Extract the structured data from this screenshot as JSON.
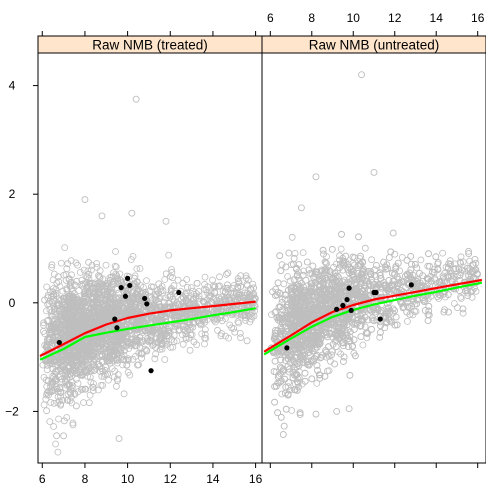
{
  "chart_data": {
    "type": "scatter",
    "panels": [
      {
        "title": "Raw NMB (treated)",
        "xlim": [
          5.8,
          16.3
        ],
        "highlight_points": [
          {
            "x": 6.8,
            "y": -0.73
          },
          {
            "x": 9.4,
            "y": -0.3
          },
          {
            "x": 9.5,
            "y": -0.46
          },
          {
            "x": 9.7,
            "y": 0.28
          },
          {
            "x": 9.9,
            "y": 0.12
          },
          {
            "x": 10.0,
            "y": 0.45
          },
          {
            "x": 10.1,
            "y": 0.32
          },
          {
            "x": 10.8,
            "y": 0.08
          },
          {
            "x": 10.9,
            "y": -0.02
          },
          {
            "x": 11.1,
            "y": -1.25
          },
          {
            "x": 12.4,
            "y": 0.19
          }
        ],
        "outliers": [
          {
            "x": 10.4,
            "y": 3.75
          },
          {
            "x": 8.0,
            "y": 1.9
          },
          {
            "x": 8.8,
            "y": 1.6
          },
          {
            "x": 10.2,
            "y": 1.65
          },
          {
            "x": 11.8,
            "y": 1.5
          },
          {
            "x": 7.6,
            "y": -1.9
          },
          {
            "x": 7.0,
            "y": -2.45
          },
          {
            "x": 9.6,
            "y": -2.5
          },
          {
            "x": 15.6,
            "y": -0.7
          },
          {
            "x": 14.7,
            "y": 0.55
          },
          {
            "x": 15.3,
            "y": 0.5
          }
        ],
        "red_fit": {
          "x": [
            5.9,
            7.0,
            8.0,
            9.0,
            10.0,
            11.0,
            12.0,
            13.0,
            14.0,
            15.0,
            16.0
          ],
          "y": [
            -0.98,
            -0.76,
            -0.56,
            -0.4,
            -0.28,
            -0.2,
            -0.14,
            -0.1,
            -0.06,
            -0.02,
            0.02
          ]
        },
        "green_fit": {
          "x": [
            5.9,
            7.0,
            8.0,
            9.0,
            10.0,
            11.0,
            12.0,
            13.0,
            14.0,
            15.0,
            16.0
          ],
          "y": [
            -1.05,
            -0.85,
            -0.63,
            -0.55,
            -0.48,
            -0.42,
            -0.36,
            -0.3,
            -0.23,
            -0.17,
            -0.1
          ]
        }
      },
      {
        "title": "Raw NMB (untreated)",
        "xlim": [
          5.6,
          16.4
        ],
        "highlight_points": [
          {
            "x": 6.8,
            "y": -0.83
          },
          {
            "x": 9.2,
            "y": -0.12
          },
          {
            "x": 9.5,
            "y": -0.05
          },
          {
            "x": 9.7,
            "y": 0.06
          },
          {
            "x": 9.8,
            "y": 0.27
          },
          {
            "x": 9.9,
            "y": -0.14
          },
          {
            "x": 11.0,
            "y": 0.19
          },
          {
            "x": 11.1,
            "y": 0.19
          },
          {
            "x": 11.3,
            "y": -0.3
          },
          {
            "x": 12.8,
            "y": 0.33
          }
        ],
        "outliers": [
          {
            "x": 10.4,
            "y": 4.2
          },
          {
            "x": 8.2,
            "y": 2.32
          },
          {
            "x": 11.0,
            "y": 2.4
          },
          {
            "x": 7.5,
            "y": 1.75
          },
          {
            "x": 9.2,
            "y": -2.0
          },
          {
            "x": 8.2,
            "y": -2.05
          },
          {
            "x": 9.8,
            "y": -1.95
          },
          {
            "x": 14.6,
            "y": 0.72
          }
        ],
        "red_fit": {
          "x": [
            5.7,
            7.0,
            8.0,
            9.0,
            10.0,
            11.0,
            12.0,
            13.0,
            14.0,
            15.0,
            16.2
          ],
          "y": [
            -0.9,
            -0.6,
            -0.36,
            -0.17,
            -0.04,
            0.06,
            0.13,
            0.2,
            0.27,
            0.34,
            0.42
          ]
        },
        "green_fit": {
          "x": [
            5.7,
            7.0,
            8.0,
            9.0,
            10.0,
            11.0,
            12.0,
            13.0,
            14.0,
            15.0,
            16.2
          ],
          "y": [
            -0.95,
            -0.66,
            -0.44,
            -0.26,
            -0.13,
            -0.03,
            0.05,
            0.13,
            0.2,
            0.28,
            0.37
          ]
        }
      }
    ],
    "ylim": [
      -2.95,
      4.6
    ],
    "yticks": [
      -2,
      0,
      2,
      4
    ],
    "xticks": [
      6,
      8,
      10,
      12,
      14,
      16
    ],
    "colors": {
      "background_points": "#bebebe",
      "highlight": "#000000",
      "red_fit": "#ff0000",
      "green_fit": "#00ff00",
      "strip": "#ffe5cc"
    },
    "xlabel": "",
    "ylabel": ""
  }
}
